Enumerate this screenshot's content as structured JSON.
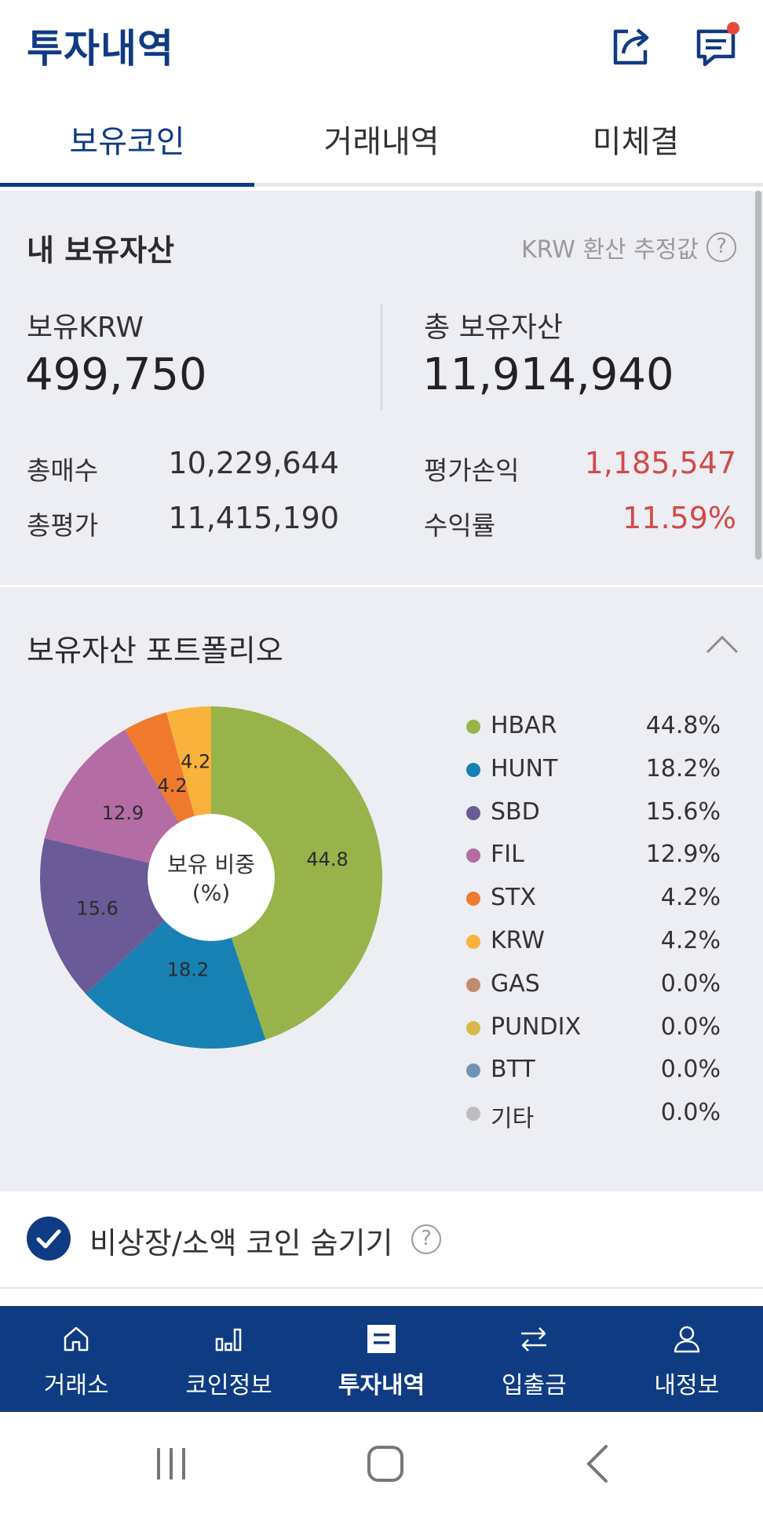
{
  "header": {
    "title": "투자내역",
    "icons": [
      "share-icon",
      "chat-icon"
    ],
    "notification_dot_color": "#e8493e"
  },
  "tabs": [
    {
      "label": "보유코인",
      "active": true
    },
    {
      "label": "거래내역",
      "active": false
    },
    {
      "label": "미체결",
      "active": false
    }
  ],
  "assets": {
    "title": "내 보유자산",
    "krw_note": "KRW 환산 추정값",
    "krw_holding_label": "보유KRW",
    "krw_holding_value": "499,750",
    "total_assets_label": "총 보유자산",
    "total_assets_value": "11,914,940",
    "total_buy_label": "총매수",
    "total_buy_value": "10,229,644",
    "total_eval_label": "총평가",
    "total_eval_value": "11,415,190",
    "pnl_label": "평가손익",
    "pnl_value": "1,185,547",
    "return_label": "수익률",
    "return_value": "11.59%"
  },
  "portfolio": {
    "title": "보유자산 포트폴리오",
    "center_label_line1": "보유 비중",
    "center_label_line2": "(%)",
    "legend": [
      {
        "name": "HBAR",
        "value": "44.8%"
      },
      {
        "name": "HUNT",
        "value": "18.2%"
      },
      {
        "name": "SBD",
        "value": "15.6%"
      },
      {
        "name": "FIL",
        "value": "12.9%"
      },
      {
        "name": "STX",
        "value": "4.2%"
      },
      {
        "name": "KRW",
        "value": "4.2%"
      },
      {
        "name": "GAS",
        "value": "0.0%"
      },
      {
        "name": "PUNDIX",
        "value": "0.0%"
      },
      {
        "name": "BTT",
        "value": "0.0%"
      },
      {
        "name": "기타",
        "value": "0.0%"
      }
    ]
  },
  "chart_data": {
    "type": "pie",
    "title": "",
    "categories": [
      "HBAR",
      "HUNT",
      "SBD",
      "FIL",
      "STX",
      "KRW",
      "GAS",
      "PUNDIX",
      "BTT",
      "기타"
    ],
    "values": [
      44.8,
      18.2,
      15.6,
      12.9,
      4.2,
      4.2,
      0.0,
      0.0,
      0.0,
      0.0
    ],
    "labels": [
      "44.8",
      "18.2",
      "15.6",
      "12.9",
      "4.2",
      "4.2"
    ],
    "colors": [
      "#98b34a",
      "#1781b3",
      "#6a5a98",
      "#b46ca5",
      "#ef7a2d",
      "#f9b23c",
      "#c18c6a",
      "#d8b84b",
      "#6f93b2",
      "#bdbdbd"
    ],
    "center_text": "보유 비중 (%)",
    "legend_position": "right"
  },
  "hide_option": {
    "label": "비상장/소액 코인 숨기기",
    "checked": true
  },
  "bottom_nav": [
    {
      "label": "거래소",
      "icon": "home-icon",
      "active": false
    },
    {
      "label": "코인정보",
      "icon": "bar-chart-icon",
      "active": false
    },
    {
      "label": "투자내역",
      "icon": "list-doc-icon",
      "active": true
    },
    {
      "label": "입출금",
      "icon": "transfer-icon",
      "active": false
    },
    {
      "label": "내정보",
      "icon": "user-icon",
      "active": false
    }
  ],
  "system_nav": [
    "recent-apps-icon",
    "home-button-icon",
    "back-icon"
  ],
  "colors": {
    "brand": "#0f3b83",
    "positive": "#d24a48",
    "panel_bg": "#edeef3"
  }
}
